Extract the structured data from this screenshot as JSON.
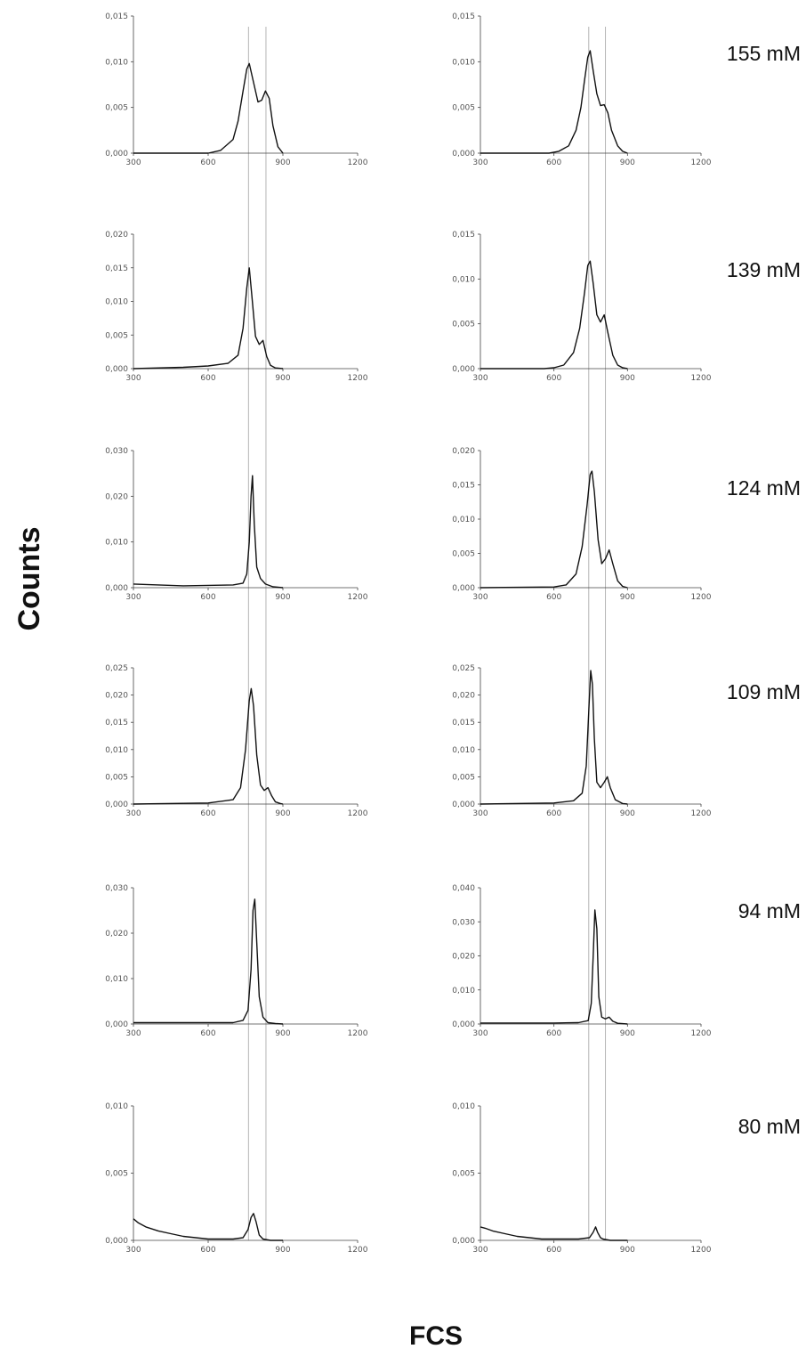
{
  "ylabel": "Counts",
  "xlabel": "FCS",
  "row_labels": [
    "155 mM",
    "139 mM",
    "124 mM",
    "109 mM",
    "94 mM",
    "80 mM"
  ],
  "colors": {
    "curve": "#111111",
    "axis": "#444444",
    "guide": "#b5b5b5",
    "text": "#111111"
  },
  "chart_data": {
    "type": "line",
    "layout": "grid 6 rows x 2 columns",
    "xlim": [
      300,
      1200
    ],
    "xticks": [
      "300",
      "600",
      "900",
      "1200"
    ],
    "xlabel": "FCS",
    "ylabel": "Counts",
    "grid": false,
    "guide_lines_x": {
      "left": [
        762,
        832
      ],
      "right": [
        742,
        810
      ]
    },
    "panels": [
      {
        "row": 0,
        "col": 0,
        "label": "155 mM",
        "ylim": [
          0,
          0.015
        ],
        "yticks": [
          "0,000",
          "0,005",
          "0,010",
          "0,015"
        ],
        "x": [
          300,
          600,
          650,
          700,
          720,
          740,
          755,
          765,
          780,
          800,
          815,
          830,
          845,
          860,
          880,
          900
        ],
        "y": [
          0,
          0,
          0.0003,
          0.0015,
          0.0035,
          0.0068,
          0.0092,
          0.0098,
          0.008,
          0.0056,
          0.0058,
          0.0068,
          0.006,
          0.003,
          0.0007,
          0
        ]
      },
      {
        "row": 0,
        "col": 1,
        "label": "155 mM",
        "ylim": [
          0,
          0.015
        ],
        "yticks": [
          "0,000",
          "0,005",
          "0,010",
          "0,015"
        ],
        "x": [
          300,
          580,
          620,
          660,
          690,
          710,
          725,
          738,
          748,
          760,
          775,
          790,
          805,
          820,
          835,
          860,
          880,
          900
        ],
        "y": [
          0,
          0,
          0.0002,
          0.0008,
          0.0025,
          0.005,
          0.008,
          0.0105,
          0.0112,
          0.009,
          0.0065,
          0.0052,
          0.0053,
          0.0044,
          0.0025,
          0.0008,
          0.0002,
          0
        ]
      },
      {
        "row": 1,
        "col": 0,
        "label": "139 mM",
        "ylim": [
          0,
          0.02
        ],
        "yticks": [
          "0,000",
          "0,005",
          "0,010",
          "0,015",
          "0,020"
        ],
        "x": [
          300,
          500,
          600,
          680,
          720,
          740,
          755,
          765,
          775,
          790,
          805,
          820,
          835,
          850,
          870,
          900
        ],
        "y": [
          0,
          0.0002,
          0.0004,
          0.0008,
          0.002,
          0.006,
          0.012,
          0.015,
          0.011,
          0.0048,
          0.0036,
          0.0042,
          0.0018,
          0.0005,
          0.0001,
          0
        ]
      },
      {
        "row": 1,
        "col": 1,
        "label": "139 mM",
        "ylim": [
          0,
          0.015
        ],
        "yticks": [
          "0,000",
          "0,005",
          "0,010",
          "0,015"
        ],
        "x": [
          300,
          560,
          600,
          640,
          680,
          705,
          725,
          738,
          748,
          760,
          775,
          790,
          805,
          820,
          840,
          860,
          880,
          900
        ],
        "y": [
          0,
          0,
          0.0001,
          0.0004,
          0.0018,
          0.0045,
          0.0085,
          0.0115,
          0.012,
          0.0095,
          0.006,
          0.0052,
          0.006,
          0.004,
          0.0015,
          0.0004,
          0.0001,
          0
        ]
      },
      {
        "row": 2,
        "col": 0,
        "label": "124 mM",
        "ylim": [
          0,
          0.03
        ],
        "yticks": [
          "0,000",
          "0,010",
          "0,020",
          "0,030"
        ],
        "x": [
          300,
          500,
          700,
          740,
          755,
          765,
          772,
          778,
          785,
          795,
          810,
          830,
          860,
          900
        ],
        "y": [
          0.0008,
          0.0004,
          0.0006,
          0.001,
          0.003,
          0.01,
          0.02,
          0.0245,
          0.014,
          0.0045,
          0.002,
          0.0008,
          0.0002,
          0
        ]
      },
      {
        "row": 2,
        "col": 1,
        "label": "124 mM",
        "ylim": [
          0,
          0.02
        ],
        "yticks": [
          "0,000",
          "0,005",
          "0,010",
          "0,015",
          "0,020"
        ],
        "x": [
          300,
          600,
          650,
          690,
          715,
          735,
          748,
          755,
          765,
          780,
          795,
          810,
          825,
          840,
          860,
          880,
          900
        ],
        "y": [
          0,
          0.0001,
          0.0004,
          0.002,
          0.006,
          0.012,
          0.0165,
          0.017,
          0.014,
          0.007,
          0.0035,
          0.0042,
          0.0055,
          0.0035,
          0.001,
          0.0002,
          0
        ]
      },
      {
        "row": 3,
        "col": 0,
        "label": "109 mM",
        "ylim": [
          0,
          0.025
        ],
        "yticks": [
          "0,000",
          "0,005",
          "0,010",
          "0,015",
          "0,020",
          "0,025"
        ],
        "x": [
          300,
          600,
          700,
          730,
          750,
          765,
          773,
          782,
          795,
          810,
          825,
          840,
          855,
          870,
          890,
          900
        ],
        "y": [
          0,
          0.0002,
          0.0008,
          0.003,
          0.01,
          0.019,
          0.0212,
          0.018,
          0.009,
          0.0035,
          0.0025,
          0.003,
          0.0015,
          0.0004,
          0.0001,
          0
        ]
      },
      {
        "row": 3,
        "col": 1,
        "label": "109 mM",
        "ylim": [
          0,
          0.025
        ],
        "yticks": [
          "0,000",
          "0,005",
          "0,010",
          "0,015",
          "0,020",
          "0,025"
        ],
        "x": [
          300,
          600,
          680,
          715,
          732,
          742,
          750,
          757,
          765,
          775,
          790,
          805,
          818,
          830,
          850,
          880,
          900
        ],
        "y": [
          0,
          0.0002,
          0.0006,
          0.002,
          0.007,
          0.017,
          0.0245,
          0.022,
          0.012,
          0.004,
          0.003,
          0.004,
          0.005,
          0.003,
          0.0008,
          0.0001,
          0
        ]
      },
      {
        "row": 4,
        "col": 0,
        "label": "94 mM",
        "ylim": [
          0,
          0.03
        ],
        "yticks": [
          "0,000",
          "0,010",
          "0,020",
          "0,030"
        ],
        "x": [
          300,
          600,
          700,
          740,
          760,
          772,
          780,
          787,
          795,
          805,
          820,
          840,
          870,
          900
        ],
        "y": [
          0.0003,
          0.0003,
          0.0003,
          0.0008,
          0.003,
          0.012,
          0.025,
          0.0275,
          0.018,
          0.006,
          0.0015,
          0.0003,
          0.0001,
          0
        ]
      },
      {
        "row": 4,
        "col": 1,
        "label": "94 mM",
        "ylim": [
          0,
          0.04
        ],
        "yticks": [
          "0,000",
          "0,010",
          "0,020",
          "0,030",
          "0,040"
        ],
        "x": [
          300,
          600,
          700,
          740,
          752,
          760,
          767,
          775,
          783,
          795,
          810,
          825,
          840,
          860,
          900
        ],
        "y": [
          0.0003,
          0.0003,
          0.0004,
          0.001,
          0.006,
          0.02,
          0.0335,
          0.028,
          0.008,
          0.002,
          0.0015,
          0.002,
          0.0008,
          0.0002,
          0
        ]
      },
      {
        "row": 5,
        "col": 0,
        "label": "80 mM",
        "ylim": [
          0,
          0.01
        ],
        "yticks": [
          "0,000",
          "0,005",
          "0,010"
        ],
        "x": [
          300,
          320,
          350,
          400,
          450,
          500,
          550,
          600,
          650,
          700,
          740,
          760,
          772,
          782,
          792,
          805,
          820,
          850,
          900
        ],
        "y": [
          0.0016,
          0.0013,
          0.001,
          0.0007,
          0.0005,
          0.0003,
          0.0002,
          0.0001,
          0.0001,
          0.0001,
          0.0002,
          0.0008,
          0.0017,
          0.002,
          0.0014,
          0.0004,
          0.0001,
          0,
          0
        ]
      },
      {
        "row": 5,
        "col": 1,
        "label": "80 mM",
        "ylim": [
          0,
          0.01
        ],
        "yticks": [
          "0,000",
          "0,005",
          "0,010"
        ],
        "x": [
          300,
          320,
          350,
          400,
          450,
          500,
          550,
          600,
          700,
          745,
          760,
          770,
          778,
          790,
          800,
          830,
          900
        ],
        "y": [
          0.001,
          0.0009,
          0.0007,
          0.0005,
          0.0003,
          0.0002,
          0.0001,
          0.0001,
          0.0001,
          0.0002,
          0.0006,
          0.001,
          0.0006,
          0.0002,
          0.0001,
          0,
          0
        ]
      }
    ]
  }
}
